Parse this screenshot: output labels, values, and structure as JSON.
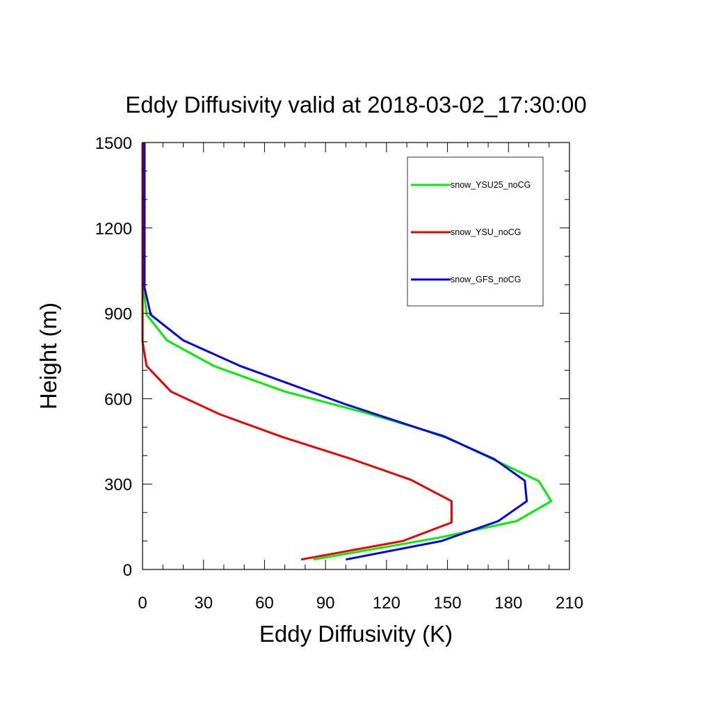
{
  "chart_data": {
    "type": "line",
    "title": "Eddy Diffusivity valid at 2018-03-02_17:30:00",
    "xlabel": "Eddy Diffusivity (K)",
    "ylabel": "Height (m)",
    "xlim": [
      0,
      210
    ],
    "ylim": [
      0,
      1500
    ],
    "xticks": [
      0,
      30,
      60,
      90,
      120,
      150,
      180,
      210
    ],
    "yticks": [
      0,
      300,
      600,
      900,
      1200,
      1500
    ],
    "grid": false,
    "legend_position": "top-right",
    "series": [
      {
        "name": "snow_YSU25_noCG",
        "color": "#00ee00",
        "points": [
          [
            84,
            35
          ],
          [
            146,
            112
          ],
          [
            184,
            170
          ],
          [
            201,
            240
          ],
          [
            195,
            310
          ],
          [
            173,
            385
          ],
          [
            148,
            470
          ],
          [
            110,
            550
          ],
          [
            70,
            625
          ],
          [
            35,
            715
          ],
          [
            12,
            805
          ],
          [
            2,
            895
          ],
          [
            0.5,
            990
          ],
          [
            0.5,
            1100
          ],
          [
            0.5,
            1200
          ],
          [
            0.5,
            1300
          ],
          [
            0.5,
            1400
          ],
          [
            0.5,
            1500
          ]
        ]
      },
      {
        "name": "snow_YSU_noCG",
        "color": "#ee0000",
        "points": [
          [
            78,
            35
          ],
          [
            128,
            100
          ],
          [
            152,
            165
          ],
          [
            152,
            240
          ],
          [
            132,
            315
          ],
          [
            102,
            390
          ],
          [
            69,
            465
          ],
          [
            38,
            545
          ],
          [
            14,
            625
          ],
          [
            2,
            715
          ],
          [
            0,
            800
          ],
          [
            0,
            900
          ],
          [
            0,
            1000
          ],
          [
            0,
            1100
          ],
          [
            0,
            1200
          ],
          [
            0,
            1300
          ],
          [
            0,
            1400
          ],
          [
            0,
            1500
          ]
        ]
      },
      {
        "name": "snow_GFS_noCG",
        "color": "#0000ee",
        "points": [
          [
            100,
            35
          ],
          [
            147,
            100
          ],
          [
            175,
            170
          ],
          [
            189,
            240
          ],
          [
            188,
            312
          ],
          [
            173,
            388
          ],
          [
            149,
            465
          ],
          [
            100,
            580
          ],
          [
            48,
            715
          ],
          [
            20,
            805
          ],
          [
            4,
            895
          ],
          [
            1,
            990
          ],
          [
            1,
            1100
          ],
          [
            1,
            1200
          ],
          [
            1,
            1300
          ],
          [
            1,
            1400
          ],
          [
            1,
            1500
          ]
        ]
      }
    ]
  }
}
